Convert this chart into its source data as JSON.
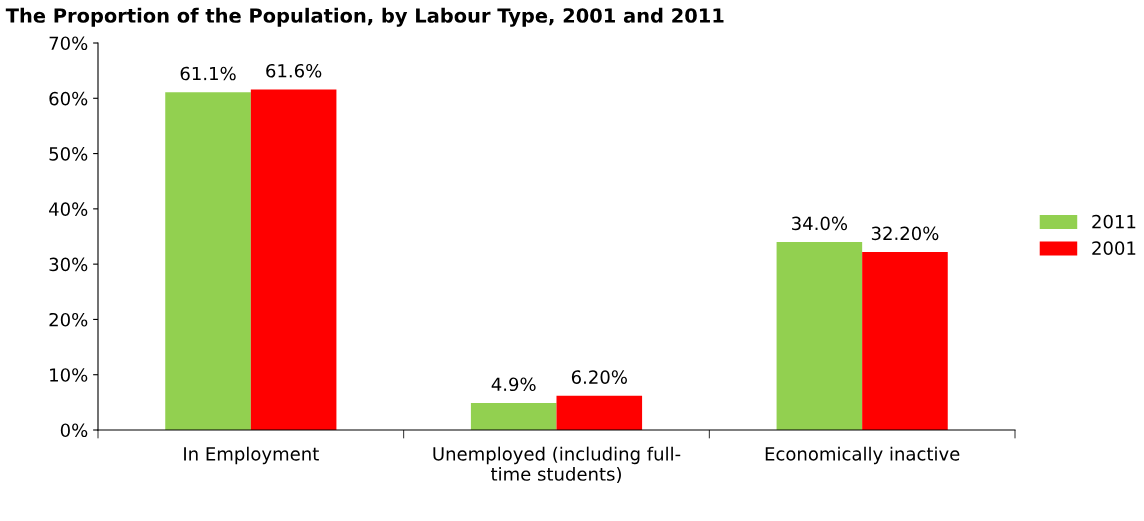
{
  "chart_data": {
    "type": "bar",
    "title": "The Proportion of the Population, by Labour Type, 2001 and 2011",
    "categories": [
      "In Employment",
      "Unemployed (including full-\ntime students)",
      "Economically inactive"
    ],
    "series": [
      {
        "name": "2011",
        "color": "#92d050",
        "values": [
          61.1,
          4.9,
          34.0
        ],
        "value_labels": [
          "61.1%",
          "4.9%",
          "34.0%"
        ]
      },
      {
        "name": "2001",
        "color": "#ff0000",
        "values": [
          61.6,
          6.2,
          32.2
        ],
        "value_labels": [
          "61.6%",
          "6.20%",
          "32.20%"
        ]
      }
    ],
    "ylim": [
      0,
      70
    ],
    "yticks": [
      {
        "value": 0,
        "label": "0%"
      },
      {
        "value": 10,
        "label": "10%"
      },
      {
        "value": 20,
        "label": "20%"
      },
      {
        "value": 30,
        "label": "30%"
      },
      {
        "value": 40,
        "label": "40%"
      },
      {
        "value": 50,
        "label": "50%"
      },
      {
        "value": 60,
        "label": "60%"
      },
      {
        "value": 70,
        "label": "70%"
      }
    ],
    "grid": false,
    "legend": "right"
  }
}
